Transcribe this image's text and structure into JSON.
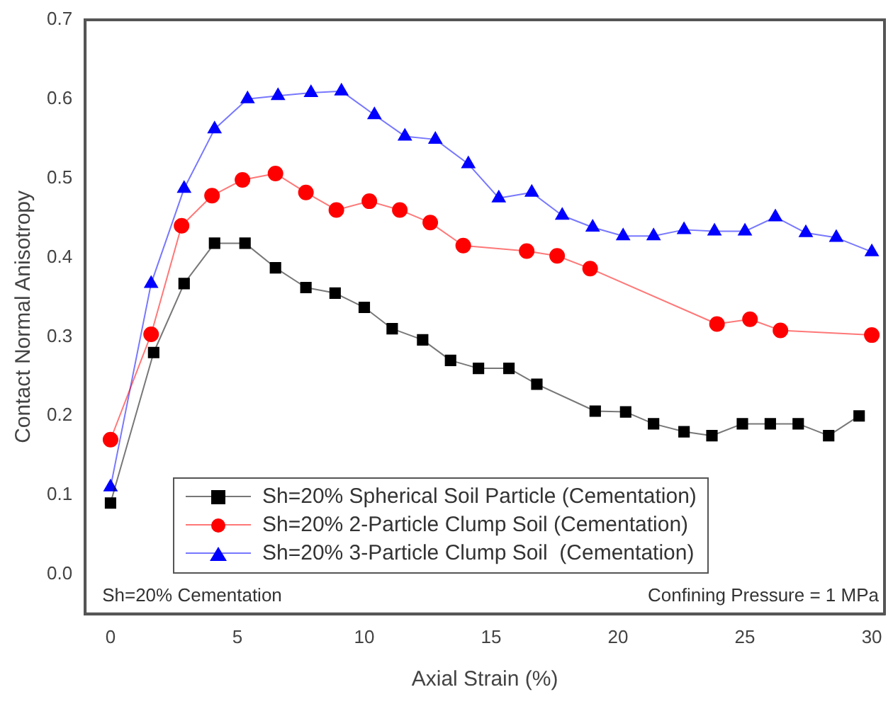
{
  "chart_data": {
    "type": "line",
    "xlabel": "Axial Strain (%)",
    "ylabel": "Contact Normal Anisotropy",
    "xlim": [
      -1,
      30.5
    ],
    "xticks": [
      0,
      5,
      10,
      15,
      20,
      25,
      30
    ],
    "ylim": [
      -0.05,
      0.7
    ],
    "yticks": [
      {
        "value": 0,
        "label": "0.0"
      },
      0.1,
      0.2,
      0.3,
      0.4,
      0.5,
      0.6,
      0.7
    ],
    "grid": false,
    "legend": "bottom",
    "line_style": "solid",
    "annotations": [
      "Sh=20% Cementation",
      "Confining Pressure = 1 MPa"
    ],
    "series": [
      {
        "name": "Sh=20% Spherical Soil Particle (Cementation)",
        "color": "#000000",
        "marker": "square",
        "x": [
          0,
          1.7,
          2.9,
          4.1,
          5.3,
          6.5,
          7.7,
          8.85,
          10,
          11.1,
          12.3,
          13.4,
          14.5,
          15.7,
          16.8,
          19.1,
          20.3,
          21.4,
          22.6,
          23.7,
          24.9,
          26,
          27.1,
          28.3,
          29.5
        ],
        "values": [
          0.09,
          0.28,
          0.367,
          0.418,
          0.418,
          0.387,
          0.362,
          0.355,
          0.337,
          0.31,
          0.296,
          0.27,
          0.26,
          0.26,
          0.24,
          0.206,
          0.205,
          0.19,
          0.18,
          0.175,
          0.19,
          0.19,
          0.19,
          0.175,
          0.2
        ]
      },
      {
        "name": "Sh=20% 2-Particle Clump Soil (Cementation)",
        "color": "#ff0000",
        "marker": "circle",
        "x": [
          0,
          1.6,
          2.8,
          4,
          5.2,
          6.5,
          7.7,
          8.9,
          10.2,
          11.4,
          12.6,
          13.9,
          16.4,
          17.6,
          18.9,
          23.9,
          25.2,
          26.4,
          30
        ],
        "values": [
          0.17,
          0.303,
          0.44,
          0.478,
          0.498,
          0.506,
          0.482,
          0.46,
          0.471,
          0.46,
          0.444,
          0.415,
          0.408,
          0.402,
          0.386,
          0.316,
          0.322,
          0.308,
          0.302
        ]
      },
      {
        "name": "Sh=20% 3-Particle Clump Soil  (Cementation)",
        "color": "#0000ff",
        "marker": "triangle",
        "x": [
          0,
          1.6,
          2.9,
          4.1,
          5.4,
          6.6,
          7.9,
          9.1,
          10.4,
          11.6,
          12.8,
          14.1,
          15.3,
          16.6,
          17.8,
          19.0,
          20.2,
          21.4,
          22.6,
          23.8,
          25,
          26.2,
          27.4,
          28.6,
          30
        ],
        "values": [
          0.11,
          0.367,
          0.487,
          0.562,
          0.6,
          0.604,
          0.608,
          0.61,
          0.58,
          0.553,
          0.549,
          0.518,
          0.475,
          0.482,
          0.453,
          0.438,
          0.427,
          0.427,
          0.435,
          0.433,
          0.433,
          0.451,
          0.431,
          0.425,
          0.407
        ]
      }
    ]
  }
}
